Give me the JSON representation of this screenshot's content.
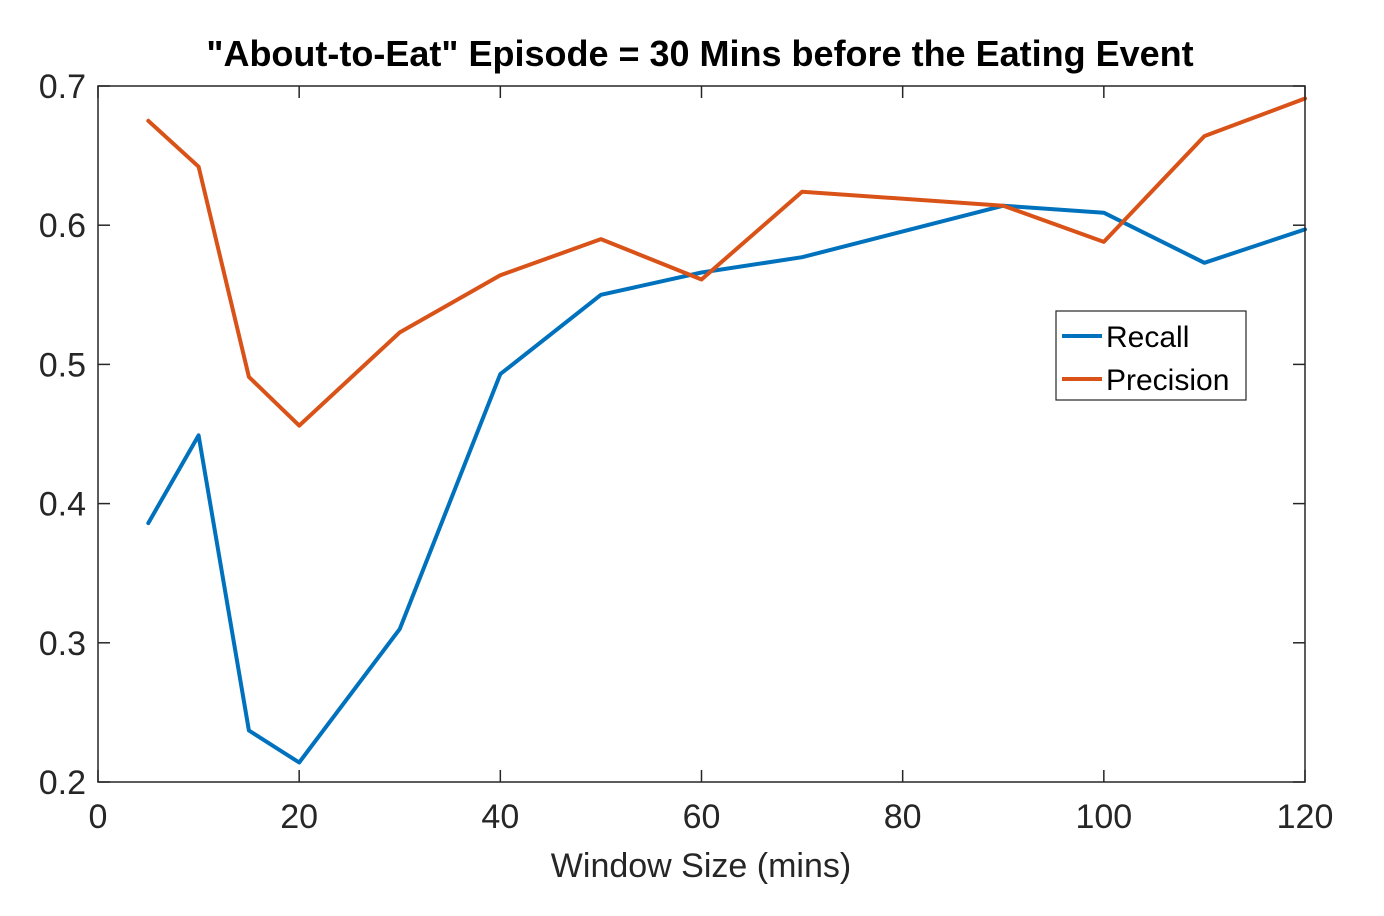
{
  "chart_data": {
    "type": "line",
    "title": "\"About-to-Eat\" Episode = 30 Mins before the Eating Event",
    "xlabel": "Window Size (mins)",
    "ylabel": "",
    "xlim": [
      0,
      120
    ],
    "ylim": [
      0.2,
      0.7
    ],
    "xticks": [
      0,
      20,
      40,
      60,
      80,
      100,
      120
    ],
    "yticks": [
      0.2,
      0.3,
      0.4,
      0.5,
      0.6,
      0.7
    ],
    "grid": false,
    "legend_position": "right",
    "x": [
      5,
      10,
      15,
      20,
      30,
      40,
      50,
      60,
      70,
      90,
      100,
      110,
      120
    ],
    "series": [
      {
        "name": "Recall",
        "color": "#0072BD",
        "values": [
          0.386,
          0.449,
          0.237,
          0.214,
          0.31,
          0.493,
          0.55,
          0.566,
          0.577,
          0.614,
          0.609,
          0.573,
          0.597
        ]
      },
      {
        "name": "Precision",
        "color": "#D95319",
        "values": [
          0.675,
          0.642,
          0.491,
          0.456,
          0.523,
          0.564,
          0.59,
          0.561,
          0.624,
          0.614,
          0.588,
          0.664,
          0.691
        ]
      }
    ]
  }
}
